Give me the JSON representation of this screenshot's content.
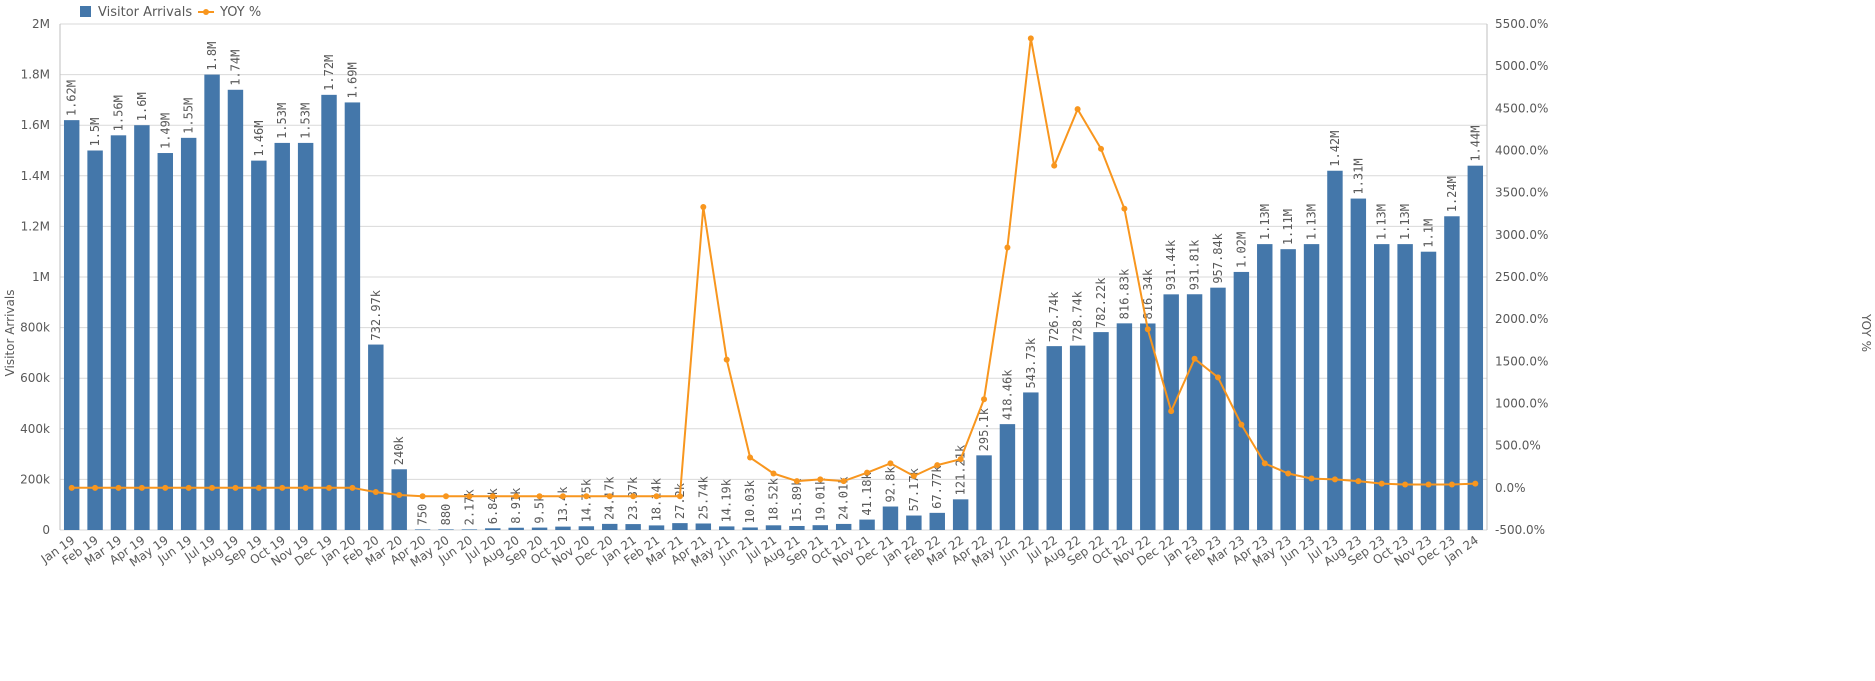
{
  "chart_data": {
    "type": "bar",
    "categories": [
      "Jan 19",
      "Feb 19",
      "Mar 19",
      "Apr 19",
      "May 19",
      "Jun 19",
      "Jul 19",
      "Aug 19",
      "Sep 19",
      "Oct 19",
      "Nov 19",
      "Dec 19",
      "Jan 20",
      "Feb 20",
      "Mar 20",
      "Apr 20",
      "May 20",
      "Jun 20",
      "Jul 20",
      "Aug 20",
      "Sep 20",
      "Oct 20",
      "Nov 20",
      "Dec 20",
      "Jan 21",
      "Feb 21",
      "Mar 21",
      "Apr 21",
      "May 21",
      "Jun 21",
      "Jul 21",
      "Aug 21",
      "Sep 21",
      "Oct 21",
      "Nov 21",
      "Dec 21",
      "Jan 22",
      "Feb 22",
      "Mar 22",
      "Apr 22",
      "May 22",
      "Jun 22",
      "Jul 22",
      "Aug 22",
      "Sep 22",
      "Oct 22",
      "Nov 22",
      "Dec 22",
      "Jan 23",
      "Feb 23",
      "Mar 23",
      "Apr 23",
      "May 23",
      "Jun 23",
      "Jul 23",
      "Aug 23",
      "Sep 23",
      "Oct 23",
      "Nov 23",
      "Dec 23",
      "Jan 24"
    ],
    "series": [
      {
        "name": "Visitor Arrivals",
        "type": "bar",
        "axis": "left",
        "color": "#4477aa",
        "values": [
          1620000,
          1500000,
          1560000,
          1600000,
          1490000,
          1550000,
          1800000,
          1740000,
          1460000,
          1530000,
          1530000,
          1720000,
          1690000,
          732970,
          240000,
          750,
          880,
          2170,
          6840,
          8910,
          9500,
          13400,
          14750,
          24170,
          23370,
          18140,
          27200,
          25740,
          14190,
          10030,
          18520,
          15890,
          19010,
          24010,
          41180,
          92800,
          57170,
          67770,
          121210,
          295100,
          418460,
          543730,
          726740,
          728740,
          782220,
          816830,
          816340,
          931440,
          931810,
          957840,
          1020000,
          1130000,
          1110000,
          1130000,
          1420000,
          1310000,
          1130000,
          1130000,
          1100000,
          1240000,
          1440000
        ],
        "labels": [
          "1.62M",
          "1.5M",
          "1.56M",
          "1.6M",
          "1.49M",
          "1.55M",
          "1.8M",
          "1.74M",
          "1.46M",
          "1.53M",
          "1.53M",
          "1.72M",
          "1.69M",
          "732.97k",
          "240k",
          "750",
          "880",
          "2.17k",
          "6.84k",
          "8.91k",
          "9.5k",
          "13.4k",
          "14.75k",
          "24.17k",
          "23.37k",
          "18.14k",
          "27.2k",
          "25.74k",
          "14.19k",
          "10.03k",
          "18.52k",
          "15.89k",
          "19.01k",
          "24.01k",
          "41.18k",
          "92.8k",
          "57.17k",
          "67.77k",
          "121.21k",
          "295.1k",
          "418.46k",
          "543.73k",
          "726.74k",
          "728.74k",
          "782.22k",
          "816.83k",
          "816.34k",
          "931.44k",
          "931.81k",
          "957.84k",
          "1.02M",
          "1.13M",
          "1.11M",
          "1.13M",
          "1.42M",
          "1.31M",
          "1.13M",
          "1.13M",
          "1.1M",
          "1.24M",
          "1.44M"
        ]
      },
      {
        "name": "YOY %",
        "type": "line",
        "axis": "right",
        "color": "#f8961e",
        "values": [
          0,
          0,
          0,
          0,
          0,
          0,
          0,
          0,
          0,
          0,
          0,
          0,
          0,
          -50,
          -85,
          -100,
          -100,
          -100,
          -100,
          -100,
          -100,
          -100,
          -100,
          -100,
          -100,
          -100,
          -100,
          3330,
          1520,
          360,
          170,
          80,
          100,
          80,
          180,
          290,
          140,
          270,
          340,
          1050,
          2850,
          5330,
          3820,
          4490,
          4020,
          3310,
          1880,
          910,
          1530,
          1310,
          750,
          290,
          170,
          110,
          100,
          80,
          50,
          40,
          40,
          40,
          50
        ]
      }
    ],
    "ylabel": "Visitor Arrivals",
    "y2label": "YOY %",
    "ylim": [
      0,
      2000000
    ],
    "y2lim": [
      -500,
      5500
    ],
    "yticks": [
      "0",
      "200k",
      "400k",
      "600k",
      "800k",
      "1M",
      "1.2M",
      "1.4M",
      "1.6M",
      "1.8M",
      "2M"
    ],
    "y2ticks": [
      "-500.0%",
      "0.0%",
      "500.0%",
      "1000.0%",
      "1500.0%",
      "2000.0%",
      "2500.0%",
      "3000.0%",
      "3500.0%",
      "4000.0%",
      "4500.0%",
      "5000.0%",
      "5500.0%"
    ],
    "legend": "top-left",
    "grid": true
  }
}
